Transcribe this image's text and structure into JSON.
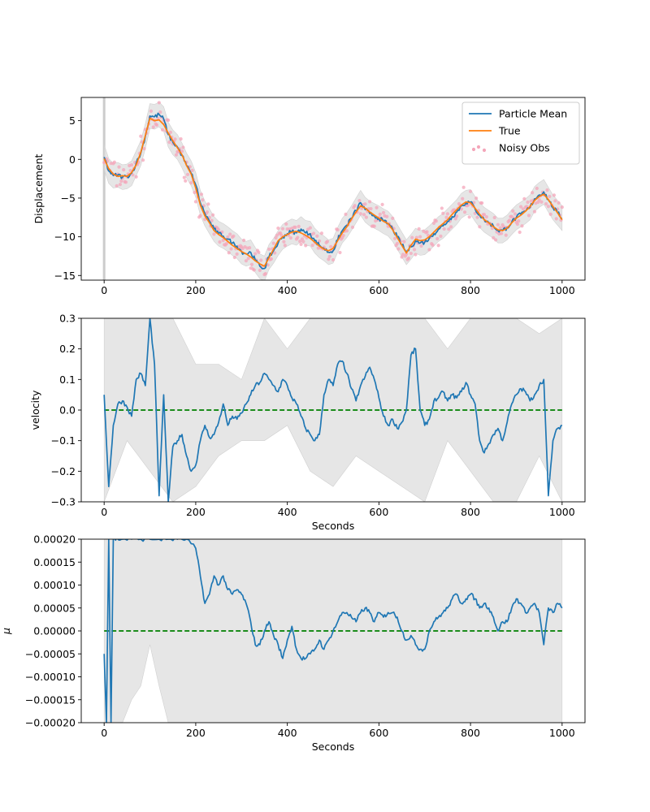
{
  "chart_data": [
    {
      "type": "line",
      "ylabel": "Displacement",
      "xlabel": "",
      "xlim": [
        -50,
        1050
      ],
      "ylim": [
        -15.6,
        8.0
      ],
      "xticks": [
        0,
        200,
        400,
        600,
        800,
        1000
      ],
      "yticks": [
        -15,
        -10,
        -5,
        0,
        5
      ],
      "legend": {
        "placement": "top-right",
        "entries": [
          "Particle Mean",
          "True",
          "Noisy Obs"
        ]
      },
      "series": [
        {
          "name": "Particle Mean",
          "color": "#1f77b4",
          "x": [
            0,
            10,
            20,
            30,
            40,
            50,
            60,
            70,
            80,
            90,
            100,
            110,
            120,
            130,
            140,
            150,
            160,
            170,
            180,
            190,
            200,
            210,
            220,
            230,
            240,
            250,
            260,
            270,
            280,
            290,
            300,
            310,
            320,
            330,
            340,
            350,
            360,
            370,
            380,
            390,
            400,
            410,
            420,
            430,
            440,
            450,
            460,
            470,
            480,
            490,
            500,
            510,
            520,
            530,
            540,
            550,
            560,
            570,
            580,
            590,
            600,
            610,
            620,
            630,
            640,
            650,
            660,
            670,
            680,
            690,
            700,
            710,
            720,
            730,
            740,
            750,
            760,
            770,
            780,
            790,
            800,
            810,
            820,
            830,
            840,
            850,
            860,
            870,
            880,
            890,
            900,
            910,
            920,
            930,
            940,
            950,
            960,
            970,
            980,
            990,
            1000
          ],
          "y": [
            0.3,
            -1.5,
            -2.1,
            -2.0,
            -2.3,
            -2.2,
            -1.8,
            -0.5,
            0.8,
            3.0,
            5.6,
            5.5,
            5.8,
            5.2,
            3.2,
            2.2,
            1.6,
            0.5,
            -0.8,
            -1.8,
            -3.3,
            -5.6,
            -7.0,
            -8.0,
            -9.0,
            -9.6,
            -9.9,
            -10.3,
            -10.8,
            -11.2,
            -11.9,
            -12.2,
            -12.0,
            -13.0,
            -13.8,
            -14.1,
            -12.6,
            -11.8,
            -10.8,
            -10.0,
            -9.6,
            -9.3,
            -9.5,
            -9.0,
            -9.5,
            -9.6,
            -10.5,
            -11.1,
            -11.5,
            -12.0,
            -11.8,
            -10.4,
            -9.2,
            -8.5,
            -7.6,
            -6.6,
            -5.6,
            -6.5,
            -7.0,
            -7.3,
            -7.6,
            -8.0,
            -8.3,
            -9.0,
            -10.0,
            -11.0,
            -12.0,
            -11.3,
            -10.5,
            -10.8,
            -10.7,
            -10.2,
            -9.6,
            -9.0,
            -8.6,
            -8.0,
            -7.4,
            -6.8,
            -6.0,
            -5.6,
            -5.5,
            -6.4,
            -7.2,
            -7.8,
            -8.2,
            -8.6,
            -9.2,
            -9.2,
            -8.8,
            -8.1,
            -7.5,
            -7.1,
            -6.7,
            -6.2,
            -5.1,
            -4.6,
            -4.2,
            -5.2,
            -6.2,
            -6.9,
            -7.6
          ]
        },
        {
          "name": "True",
          "color": "#ff7f0e",
          "x": [
            0,
            10,
            20,
            30,
            40,
            50,
            60,
            70,
            80,
            90,
            100,
            110,
            120,
            130,
            140,
            150,
            160,
            170,
            180,
            190,
            200,
            210,
            220,
            230,
            240,
            250,
            260,
            270,
            280,
            290,
            300,
            310,
            320,
            330,
            340,
            350,
            360,
            370,
            380,
            390,
            400,
            410,
            420,
            430,
            440,
            450,
            460,
            470,
            480,
            490,
            500,
            510,
            520,
            530,
            540,
            550,
            560,
            570,
            580,
            590,
            600,
            610,
            620,
            630,
            640,
            650,
            660,
            670,
            680,
            690,
            700,
            710,
            720,
            730,
            740,
            750,
            760,
            770,
            780,
            790,
            800,
            810,
            820,
            830,
            840,
            850,
            860,
            870,
            880,
            890,
            900,
            910,
            920,
            930,
            940,
            950,
            960,
            970,
            980,
            990,
            1000
          ],
          "y": [
            0.1,
            -1.2,
            -1.9,
            -2.2,
            -2.1,
            -2.2,
            -1.7,
            -0.7,
            0.9,
            3.1,
            5.3,
            5.0,
            5.1,
            4.5,
            3.4,
            2.4,
            1.5,
            0.6,
            -0.8,
            -1.9,
            -3.7,
            -5.9,
            -7.3,
            -8.2,
            -9.2,
            -9.7,
            -10.1,
            -10.6,
            -11.1,
            -11.5,
            -11.9,
            -12.2,
            -12.6,
            -13.1,
            -13.5,
            -13.8,
            -12.7,
            -11.6,
            -10.5,
            -10.0,
            -9.7,
            -9.4,
            -9.3,
            -9.5,
            -9.8,
            -10.2,
            -10.7,
            -11.2,
            -11.6,
            -11.8,
            -11.5,
            -10.5,
            -9.5,
            -8.7,
            -7.7,
            -6.8,
            -6.0,
            -6.3,
            -6.8,
            -7.2,
            -7.6,
            -8.0,
            -8.3,
            -9.1,
            -10.1,
            -11.1,
            -12.1,
            -11.1,
            -10.3,
            -10.5,
            -10.4,
            -10.0,
            -9.4,
            -8.8,
            -8.3,
            -7.8,
            -7.1,
            -6.5,
            -5.9,
            -5.5,
            -5.6,
            -6.3,
            -7.1,
            -7.8,
            -8.2,
            -8.7,
            -9.1,
            -9.2,
            -8.9,
            -8.2,
            -7.6,
            -7.2,
            -6.7,
            -6.1,
            -5.3,
            -4.8,
            -4.5,
            -5.2,
            -6.1,
            -6.9,
            -7.8
          ]
        },
        {
          "name": "Noisy Obs",
          "color": "#f4a6b9",
          "render": "scatter",
          "noise": 0.9
        }
      ],
      "band": {
        "color": "#dddddd"
      }
    },
    {
      "type": "line",
      "ylabel": "velocity",
      "xlabel": "Seconds",
      "xlim": [
        -50,
        1050
      ],
      "ylim": [
        -0.3,
        0.3
      ],
      "xticks": [
        0,
        200,
        400,
        600,
        800,
        1000
      ],
      "yticks": [
        -0.3,
        -0.2,
        -0.1,
        0.0,
        0.1,
        0.2,
        0.3
      ],
      "reference_line": {
        "y": 0.0,
        "color": "#008000",
        "style": "dashed"
      },
      "series": [
        {
          "name": "",
          "color": "#1f77b4",
          "x": [
            0,
            10,
            20,
            30,
            40,
            50,
            60,
            70,
            80,
            90,
            100,
            110,
            120,
            130,
            140,
            150,
            160,
            170,
            180,
            190,
            200,
            210,
            220,
            230,
            240,
            250,
            260,
            270,
            280,
            290,
            300,
            310,
            320,
            330,
            340,
            350,
            360,
            370,
            380,
            390,
            400,
            410,
            420,
            430,
            440,
            450,
            460,
            470,
            480,
            490,
            500,
            510,
            520,
            530,
            540,
            550,
            560,
            570,
            580,
            590,
            600,
            610,
            620,
            630,
            640,
            650,
            660,
            670,
            680,
            690,
            700,
            710,
            720,
            730,
            740,
            750,
            760,
            770,
            780,
            790,
            800,
            810,
            820,
            830,
            840,
            850,
            860,
            870,
            880,
            890,
            900,
            910,
            920,
            930,
            940,
            950,
            960,
            970,
            980,
            990,
            1000
          ],
          "y": [
            0.05,
            -0.25,
            -0.05,
            0.02,
            0.03,
            0.01,
            -0.02,
            0.1,
            0.12,
            0.08,
            0.3,
            0.15,
            -0.28,
            0.05,
            -0.3,
            -0.12,
            -0.1,
            -0.08,
            -0.15,
            -0.2,
            -0.18,
            -0.1,
            -0.05,
            -0.09,
            -0.08,
            -0.04,
            0.02,
            -0.05,
            -0.02,
            -0.03,
            -0.01,
            0.02,
            0.05,
            0.08,
            0.09,
            0.12,
            0.1,
            0.08,
            0.06,
            0.1,
            0.08,
            0.04,
            0.02,
            -0.02,
            -0.06,
            -0.08,
            -0.1,
            -0.08,
            0.05,
            0.1,
            0.08,
            0.15,
            0.16,
            0.12,
            0.07,
            0.03,
            0.08,
            0.11,
            0.14,
            0.1,
            0.04,
            -0.02,
            -0.05,
            -0.03,
            -0.06,
            -0.04,
            0.0,
            0.18,
            0.2,
            0.0,
            -0.05,
            -0.03,
            0.03,
            0.04,
            0.06,
            0.03,
            0.05,
            0.04,
            0.06,
            0.09,
            0.05,
            0.02,
            -0.1,
            -0.14,
            -0.11,
            -0.08,
            -0.06,
            -0.1,
            -0.04,
            0.02,
            0.05,
            0.07,
            0.06,
            0.03,
            0.05,
            0.08,
            0.1,
            -0.28,
            -0.1,
            -0.06,
            -0.05
          ]
        },
        {
          "name": "",
          "role": "band-lower",
          "color": "#dddddd",
          "x": [
            0,
            25,
            50,
            100,
            150,
            200,
            250,
            300,
            350,
            400,
            450,
            500,
            550,
            600,
            650,
            700,
            750,
            800,
            850,
            900,
            950,
            1000
          ],
          "y": [
            -0.3,
            -0.2,
            -0.1,
            -0.2,
            -0.3,
            -0.25,
            -0.15,
            -0.1,
            -0.1,
            -0.05,
            -0.2,
            -0.25,
            -0.15,
            -0.2,
            -0.25,
            -0.3,
            -0.1,
            -0.2,
            -0.3,
            -0.3,
            -0.15,
            -0.3
          ]
        },
        {
          "name": "",
          "role": "band-upper",
          "color": "#dddddd",
          "x": [
            0,
            25,
            50,
            100,
            150,
            200,
            250,
            300,
            350,
            400,
            450,
            500,
            550,
            600,
            650,
            700,
            750,
            800,
            850,
            900,
            950,
            1000
          ],
          "y": [
            0.3,
            0.3,
            0.3,
            0.3,
            0.3,
            0.15,
            0.15,
            0.1,
            0.3,
            0.2,
            0.3,
            0.3,
            0.3,
            0.3,
            0.3,
            0.3,
            0.2,
            0.3,
            0.3,
            0.3,
            0.25,
            0.3
          ]
        }
      ]
    },
    {
      "type": "line",
      "ylabel": "μ",
      "xlabel": "Seconds",
      "xlim": [
        -50,
        1050
      ],
      "ylim": [
        -0.0002,
        0.0002
      ],
      "xticks": [
        0,
        200,
        400,
        600,
        800,
        1000
      ],
      "yticks": [
        -0.0002,
        -0.00015,
        -0.0001,
        -5e-05,
        0.0,
        5e-05,
        0.0001,
        0.00015,
        0.0002
      ],
      "ytick_labels": [
        "−0.00020",
        "−0.00015",
        "−0.00010",
        "−0.00005",
        "0.00000",
        "0.00005",
        "0.00010",
        "0.00015",
        "0.00020"
      ],
      "reference_line": {
        "y": 0.0,
        "color": "#008000",
        "style": "dashed"
      },
      "series": [
        {
          "name": "",
          "color": "#1f77b4",
          "x": [
            0,
            5,
            10,
            15,
            20,
            30,
            40,
            60,
            80,
            100,
            120,
            140,
            160,
            180,
            200,
            210,
            220,
            230,
            240,
            250,
            260,
            270,
            280,
            290,
            300,
            310,
            320,
            330,
            340,
            350,
            360,
            370,
            380,
            390,
            400,
            410,
            420,
            430,
            440,
            450,
            460,
            470,
            480,
            490,
            500,
            510,
            520,
            530,
            540,
            550,
            560,
            570,
            580,
            590,
            600,
            610,
            620,
            630,
            640,
            650,
            660,
            670,
            680,
            690,
            700,
            710,
            720,
            730,
            740,
            750,
            760,
            770,
            780,
            790,
            800,
            810,
            820,
            830,
            840,
            850,
            860,
            870,
            880,
            890,
            900,
            910,
            920,
            930,
            940,
            950,
            960,
            970,
            980,
            990,
            1000
          ],
          "y": [
            -5e-05,
            -0.0002,
            0.0002,
            -0.0002,
            0.0002,
            0.0002,
            0.0002,
            0.0002,
            0.0002,
            0.0002,
            0.0002,
            0.0002,
            0.0002,
            0.0002,
            0.00018,
            0.00012,
            6e-05,
            8e-05,
            0.00012,
            0.0001,
            0.00012,
            9e-05,
            8e-05,
            9e-05,
            8e-05,
            6e-05,
            2e-05,
            -3e-05,
            -3e-05,
            0.0,
            2e-05,
            -1e-05,
            -3e-05,
            -6e-05,
            -2e-05,
            1e-05,
            -4e-05,
            -6e-05,
            -6e-05,
            -5e-05,
            -4e-05,
            -2e-05,
            -4e-05,
            -2e-05,
            0.0,
            2e-05,
            4e-05,
            4e-05,
            3e-05,
            2e-05,
            4e-05,
            5e-05,
            4e-05,
            2e-05,
            4e-05,
            3e-05,
            4e-05,
            4e-05,
            3e-05,
            0.0,
            -2e-05,
            -1e-05,
            -3e-05,
            -4e-05,
            -4e-05,
            0.0,
            2e-05,
            3e-05,
            4e-05,
            5e-05,
            7e-05,
            8e-05,
            6e-05,
            7e-05,
            8e-05,
            7e-05,
            5e-05,
            6e-05,
            5e-05,
            3e-05,
            0.0,
            2e-05,
            2e-05,
            5e-05,
            7e-05,
            6e-05,
            4e-05,
            5e-05,
            6e-05,
            4e-05,
            -3e-05,
            5e-05,
            4e-05,
            6e-05,
            5e-05
          ]
        },
        {
          "name": "",
          "role": "band-lower",
          "color": "#dddddd",
          "x": [
            0,
            20,
            40,
            60,
            80,
            100,
            120,
            140,
            160,
            200,
            1000
          ],
          "y": [
            -0.0002,
            -0.0002,
            -0.0002,
            -0.00015,
            -0.00012,
            -3e-05,
            -0.00012,
            -0.0002,
            -0.0002,
            -0.0002,
            -0.0002
          ]
        },
        {
          "name": "",
          "role": "band-upper",
          "color": "#dddddd",
          "x": [
            0,
            1000
          ],
          "y": [
            0.0002,
            0.0002
          ]
        }
      ]
    }
  ]
}
